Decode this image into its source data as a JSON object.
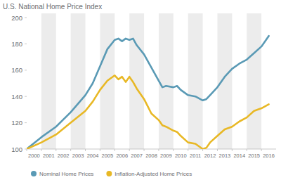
{
  "chart_data": {
    "type": "line",
    "title": "U.S. National Home Price Index",
    "x": [
      2000.0,
      2001.0,
      2002.0,
      2003.0,
      2004.0,
      2004.5,
      2005.0,
      2005.5,
      2006.0,
      2006.25,
      2006.5,
      2006.75,
      2007.0,
      2007.25,
      2007.5,
      2008.0,
      2008.5,
      2009.0,
      2009.25,
      2009.5,
      2010.0,
      2010.25,
      2010.5,
      2011.0,
      2011.5,
      2012.0,
      2012.25,
      2012.5,
      2013.0,
      2013.5,
      2014.0,
      2014.5,
      2015.0,
      2015.5,
      2016.0,
      2016.5
    ],
    "series": [
      {
        "name": "Nominal Home Prices",
        "color": "#5a9ab5",
        "values": [
          100,
          109,
          117,
          128,
          141,
          150,
          163,
          176,
          183,
          184,
          182,
          184,
          183,
          184,
          179,
          172,
          162,
          152,
          147,
          148,
          147,
          148,
          145,
          141,
          140,
          137,
          138,
          141,
          147,
          155,
          161,
          165,
          168,
          173,
          178,
          186
        ]
      },
      {
        "name": "Inflation-Adjusted Home Prices",
        "color": "#e8b825",
        "values": [
          100,
          105,
          111,
          120,
          129,
          136,
          145,
          152,
          156,
          153,
          155,
          151,
          155,
          151,
          146,
          138,
          127,
          122,
          118,
          117,
          114,
          113,
          110,
          105,
          104,
          100,
          101,
          105,
          110,
          115,
          117,
          121,
          124,
          129,
          131,
          134
        ]
      }
    ],
    "xlim": [
      2000,
      2017
    ],
    "xticks": [
      2000,
      2001,
      2002,
      2003,
      2004,
      2005,
      2006,
      2007,
      2008,
      2009,
      2010,
      2011,
      2012,
      2013,
      2014,
      2015,
      2016
    ],
    "ylim": [
      100,
      200
    ],
    "yticks": [
      100,
      120,
      140,
      160,
      180,
      200
    ],
    "legend": "bottom"
  }
}
